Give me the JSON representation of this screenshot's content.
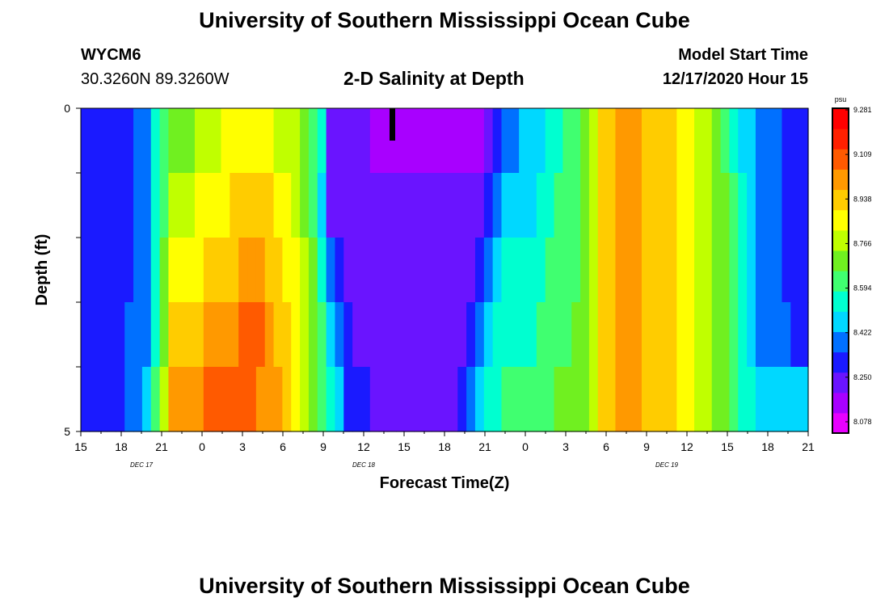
{
  "header": {
    "title_top": "University of Southern Mississippi Ocean Cube",
    "title_bottom": "University of Southern Mississippi Ocean Cube",
    "station_id": "WYCM6",
    "station_coords": "30.3260N 89.3260W",
    "chart_title": "2-D Salinity at Depth",
    "model_start_label": "Model Start Time",
    "model_start_value": "12/17/2020 Hour 15"
  },
  "chart_data": {
    "type": "heatmap",
    "title": "2-D Salinity at Depth",
    "xlabel": "Forecast Time(Z)",
    "ylabel": "Depth (ft)",
    "x_tick_labels": [
      "15",
      "18",
      "21",
      "0",
      "3",
      "6",
      "9",
      "12",
      "15",
      "18",
      "21",
      "0",
      "3",
      "6",
      "9",
      "12",
      "15",
      "18",
      "21"
    ],
    "date_labels": [
      "DEC 17",
      "DEC 18",
      "DEC 19"
    ],
    "y_range": [
      0,
      5
    ],
    "y_tick_labels": [
      "0",
      "5"
    ],
    "colorbar": {
      "unit": "psu",
      "ticks": [
        "9.281",
        "9.109",
        "8.938",
        "8.766",
        "8.594",
        "8.422",
        "8.250",
        "8.078"
      ],
      "min": 8.078,
      "max": 9.281
    },
    "depth_rows": 5,
    "hours_per_step": 3,
    "profile_columns_per_hour": 1,
    "salinity_levels_by_row": [
      [
        2,
        2,
        2,
        2,
        2,
        2,
        3,
        3,
        5,
        6,
        7,
        7,
        7,
        8,
        8,
        8,
        9,
        9,
        9,
        9,
        9,
        9,
        8,
        8,
        8,
        7,
        6,
        5,
        1,
        1,
        1,
        1,
        1,
        0,
        0,
        0,
        0,
        0,
        0,
        0,
        0,
        0,
        0,
        0,
        0,
        0,
        1,
        2,
        3,
        3,
        4,
        4,
        4,
        5,
        5,
        6,
        6,
        7,
        8,
        10,
        10,
        11,
        11,
        11,
        10,
        10,
        10,
        10,
        9,
        9,
        8,
        8,
        7,
        6,
        5,
        4,
        4,
        3,
        3,
        3,
        2,
        2,
        2
      ],
      [
        2,
        2,
        2,
        2,
        2,
        2,
        3,
        3,
        5,
        6,
        8,
        8,
        8,
        9,
        9,
        9,
        9,
        10,
        10,
        10,
        10,
        10,
        9,
        9,
        8,
        7,
        6,
        4,
        1,
        1,
        1,
        1,
        1,
        1,
        1,
        1,
        1,
        1,
        1,
        1,
        1,
        1,
        1,
        1,
        1,
        1,
        2,
        3,
        4,
        4,
        4,
        4,
        5,
        5,
        6,
        6,
        6,
        7,
        8,
        10,
        10,
        11,
        11,
        11,
        10,
        10,
        10,
        10,
        9,
        9,
        8,
        8,
        7,
        7,
        6,
        5,
        4,
        3,
        3,
        3,
        2,
        2,
        2
      ],
      [
        2,
        2,
        2,
        2,
        2,
        2,
        3,
        3,
        5,
        7,
        9,
        9,
        9,
        9,
        10,
        10,
        10,
        10,
        11,
        11,
        11,
        10,
        10,
        9,
        9,
        8,
        7,
        5,
        3,
        2,
        1,
        1,
        1,
        1,
        1,
        1,
        1,
        1,
        1,
        1,
        1,
        1,
        1,
        1,
        1,
        2,
        3,
        4,
        5,
        5,
        5,
        5,
        5,
        6,
        6,
        6,
        6,
        7,
        8,
        10,
        10,
        11,
        11,
        11,
        10,
        10,
        10,
        10,
        9,
        9,
        8,
        8,
        7,
        7,
        6,
        5,
        4,
        3,
        3,
        3,
        2,
        2,
        2
      ],
      [
        2,
        2,
        2,
        2,
        2,
        3,
        3,
        3,
        5,
        7,
        10,
        10,
        10,
        10,
        11,
        11,
        11,
        11,
        12,
        12,
        12,
        11,
        10,
        10,
        9,
        8,
        7,
        6,
        4,
        3,
        2,
        1,
        1,
        1,
        1,
        1,
        1,
        1,
        1,
        1,
        1,
        1,
        1,
        1,
        2,
        3,
        4,
        5,
        5,
        5,
        5,
        5,
        6,
        6,
        6,
        6,
        7,
        7,
        8,
        10,
        10,
        11,
        11,
        11,
        10,
        10,
        10,
        10,
        9,
        9,
        8,
        8,
        7,
        7,
        6,
        5,
        4,
        3,
        3,
        3,
        3,
        2,
        2
      ],
      [
        2,
        2,
        2,
        2,
        2,
        3,
        3,
        4,
        6,
        8,
        11,
        11,
        11,
        11,
        12,
        12,
        12,
        12,
        12,
        12,
        11,
        11,
        11,
        10,
        9,
        8,
        7,
        6,
        5,
        4,
        2,
        2,
        2,
        1,
        1,
        1,
        1,
        1,
        1,
        1,
        1,
        1,
        1,
        2,
        3,
        4,
        5,
        5,
        6,
        6,
        6,
        6,
        6,
        6,
        7,
        7,
        7,
        7,
        8,
        10,
        10,
        11,
        11,
        11,
        10,
        10,
        10,
        10,
        9,
        9,
        8,
        8,
        7,
        7,
        6,
        5,
        5,
        4,
        4,
        4,
        4,
        4,
        4
      ]
    ]
  },
  "colors": {
    "scale": [
      "#e800ff",
      "#a800ff",
      "#6a14ff",
      "#1a1aff",
      "#0070ff",
      "#00d8ff",
      "#00ffd0",
      "#40ff70",
      "#70f020",
      "#c0ff00",
      "#ffff00",
      "#ffcc00",
      "#ff9900",
      "#ff5a00",
      "#ff2000",
      "#ff0000"
    ],
    "marker": "#000000"
  }
}
